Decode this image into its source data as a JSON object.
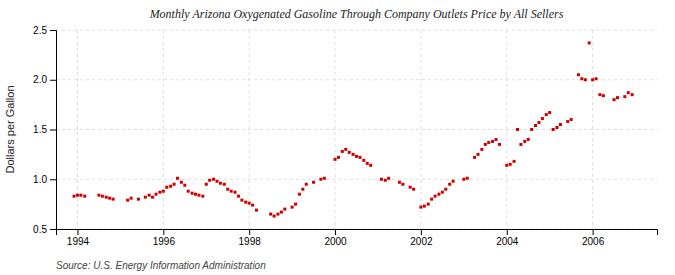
{
  "chart_data": {
    "type": "scatter",
    "title": "Monthly Arizona Oxygenated Gasoline Through Company Outlets Price by All Sellers",
    "ylabel": "Dollars per Gallon",
    "source": "Source: U.S. Energy Information Administration",
    "color": "#cc0000",
    "marker": "square",
    "grid": true,
    "xlim": [
      1993.5,
      2007.5
    ],
    "xticks": [
      1994,
      1996,
      1998,
      2000,
      2002,
      2004,
      2006
    ],
    "ylim": [
      0.5,
      2.5
    ],
    "yticks": [
      0.5,
      {
        "value": 1.0,
        "label": "1.0"
      },
      1.5,
      {
        "value": 2.0,
        "label": "2.0"
      },
      2.5
    ],
    "x": [
      1993.92,
      1994.0,
      1994.08,
      1994.17,
      1994.5,
      1994.58,
      1994.67,
      1994.75,
      1994.83,
      1995.17,
      1995.25,
      1995.42,
      1995.58,
      1995.67,
      1995.75,
      1995.83,
      1995.92,
      1996.0,
      1996.08,
      1996.17,
      1996.25,
      1996.33,
      1996.42,
      1996.5,
      1996.58,
      1996.67,
      1996.75,
      1996.83,
      1996.92,
      1997.0,
      1997.08,
      1997.17,
      1997.25,
      1997.33,
      1997.42,
      1997.5,
      1997.58,
      1997.67,
      1997.75,
      1997.83,
      1997.92,
      1998.0,
      1998.08,
      1998.17,
      1998.5,
      1998.58,
      1998.67,
      1998.75,
      1998.83,
      1999.0,
      1999.08,
      1999.17,
      1999.25,
      1999.33,
      1999.5,
      1999.67,
      1999.75,
      2000.0,
      2000.08,
      2000.17,
      2000.25,
      2000.33,
      2000.42,
      2000.5,
      2000.58,
      2000.67,
      2000.75,
      2000.83,
      2001.08,
      2001.17,
      2001.25,
      2001.5,
      2001.58,
      2001.75,
      2001.83,
      2002.0,
      2002.08,
      2002.17,
      2002.25,
      2002.33,
      2002.42,
      2002.5,
      2002.58,
      2002.67,
      2002.75,
      2003.0,
      2003.08,
      2003.25,
      2003.33,
      2003.42,
      2003.5,
      2003.58,
      2003.67,
      2003.75,
      2003.83,
      2004.0,
      2004.08,
      2004.17,
      2004.25,
      2004.33,
      2004.42,
      2004.5,
      2004.58,
      2004.67,
      2004.75,
      2004.83,
      2004.92,
      2005.0,
      2005.08,
      2005.17,
      2005.25,
      2005.42,
      2005.5,
      2005.67,
      2005.75,
      2005.83,
      2005.92,
      2006.0,
      2006.08,
      2006.17,
      2006.25,
      2006.5,
      2006.58,
      2006.75,
      2006.83,
      2006.92
    ],
    "values": [
      0.83,
      0.84,
      0.84,
      0.83,
      0.84,
      0.83,
      0.82,
      0.81,
      0.8,
      0.79,
      0.81,
      0.8,
      0.82,
      0.84,
      0.82,
      0.85,
      0.87,
      0.88,
      0.92,
      0.93,
      0.95,
      1.01,
      0.97,
      0.94,
      0.88,
      0.86,
      0.85,
      0.84,
      0.83,
      0.95,
      0.99,
      1.0,
      0.98,
      0.96,
      0.95,
      0.9,
      0.88,
      0.87,
      0.83,
      0.79,
      0.77,
      0.76,
      0.74,
      0.69,
      0.65,
      0.63,
      0.65,
      0.67,
      0.7,
      0.72,
      0.75,
      0.85,
      0.9,
      0.95,
      0.97,
      1.0,
      1.01,
      1.2,
      1.22,
      1.28,
      1.3,
      1.27,
      1.25,
      1.23,
      1.22,
      1.19,
      1.16,
      1.14,
      1.0,
      0.99,
      1.01,
      0.97,
      0.95,
      0.92,
      0.9,
      0.72,
      0.73,
      0.75,
      0.8,
      0.83,
      0.85,
      0.87,
      0.9,
      0.95,
      0.98,
      1.0,
      1.01,
      1.22,
      1.25,
      1.3,
      1.35,
      1.37,
      1.38,
      1.4,
      1.35,
      1.14,
      1.15,
      1.18,
      1.5,
      1.35,
      1.38,
      1.4,
      1.5,
      1.54,
      1.57,
      1.61,
      1.65,
      1.67,
      1.5,
      1.52,
      1.55,
      1.58,
      1.6,
      2.05,
      2.01,
      2.0,
      2.37,
      2.0,
      2.01,
      1.85,
      1.84,
      1.8,
      1.82,
      1.83,
      1.87,
      1.85
    ]
  }
}
